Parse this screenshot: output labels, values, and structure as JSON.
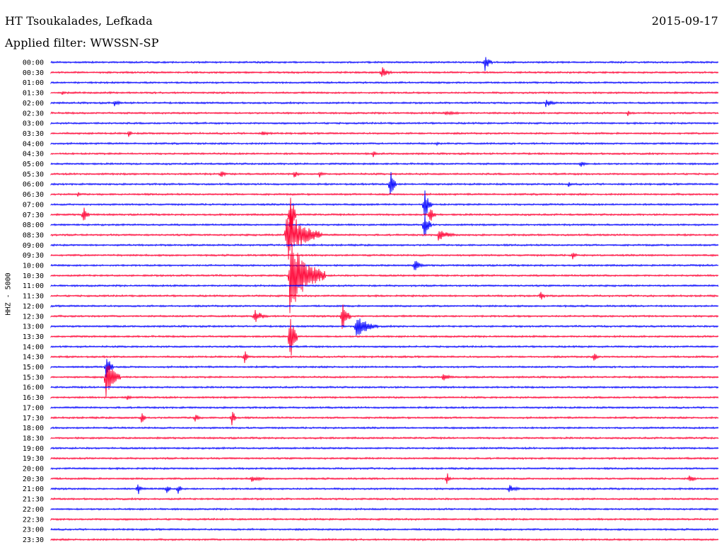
{
  "header": {
    "title": "HT Tsoukalades, Lefkada",
    "filter": "Applied filter: WWSSN-SP",
    "date": "2015-09-17",
    "channel_label": "HHZ - 5000"
  },
  "colors": {
    "blue": "#0000ff",
    "red": "#ff0033"
  },
  "times": [
    "00:00",
    "00:30",
    "01:00",
    "01:30",
    "02:00",
    "02:30",
    "03:00",
    "03:30",
    "04:00",
    "04:30",
    "05:00",
    "05:30",
    "06:00",
    "06:30",
    "07:00",
    "07:30",
    "08:00",
    "08:30",
    "09:00",
    "09:30",
    "10:00",
    "10:30",
    "11:00",
    "11:30",
    "12:00",
    "12:30",
    "13:00",
    "13:30",
    "14:00",
    "14:30",
    "15:00",
    "15:30",
    "16:00",
    "16:30",
    "17:00",
    "17:30",
    "18:00",
    "18:30",
    "19:00",
    "19:30",
    "20:00",
    "20:30",
    "21:00",
    "21:30",
    "22:00",
    "22:30",
    "23:00",
    "23:30"
  ]
}
